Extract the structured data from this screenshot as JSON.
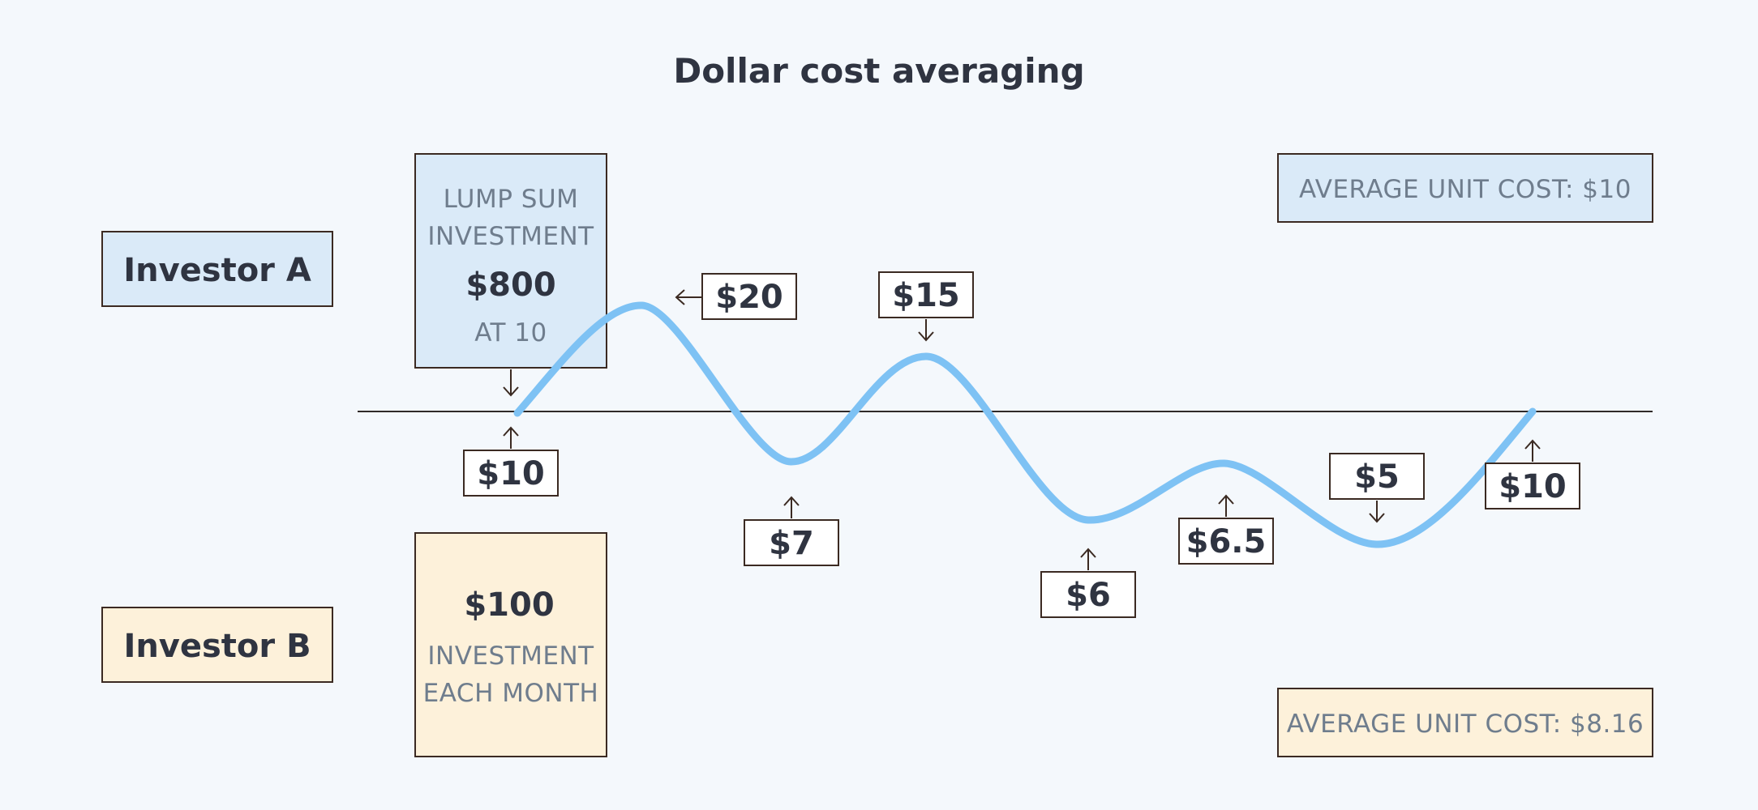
{
  "title": "Dollar cost averaging",
  "investor_a": {
    "label": "Investor A",
    "box_lines": [
      "LUMP SUM",
      "INVESTMENT"
    ],
    "amount": "$800",
    "note": "AT 10",
    "average": "AVERAGE UNIT COST: $10"
  },
  "investor_b": {
    "label": "Investor B",
    "amount": "$100",
    "box_lines": [
      "INVESTMENT",
      "EACH MONTH"
    ],
    "average": "AVERAGE UNIT COST: $8.16"
  },
  "prices": [
    "$10",
    "$20",
    "$7",
    "$15",
    "$6",
    "$6.5",
    "$5",
    "$10"
  ],
  "colors": {
    "background": "#f4f8fc",
    "investor_a_fill": "#daeaf8",
    "investor_b_fill": "#fdf1da",
    "curve": "#7ec2f4",
    "outline": "#3b2a22",
    "dark_text": "#2f3441",
    "muted_text": "#6f7d8d"
  }
}
